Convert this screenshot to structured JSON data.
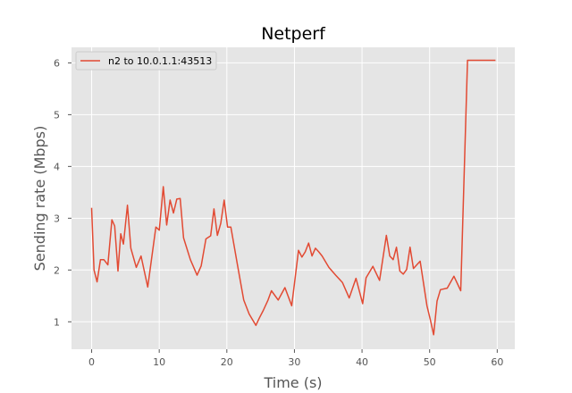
{
  "chart_data": {
    "type": "line",
    "title": "Netperf",
    "xlabel": "Time (s)",
    "ylabel": "Sending rate (Mbps)",
    "xlim": [
      -2.98,
      62.6
    ],
    "ylim": [
      0.47,
      6.3
    ],
    "xticks": [
      0,
      10,
      20,
      30,
      40,
      50,
      60
    ],
    "yticks": [
      1,
      2,
      3,
      4,
      5,
      6
    ],
    "grid": true,
    "legend_position": "upper-left",
    "colors": {
      "plot_background": "#e5e5e5",
      "grid": "#ffffff",
      "line": "#e24a33"
    },
    "series": [
      {
        "name": "n2 to 10.0.1.1:43513",
        "x": [
          0.0,
          0.35,
          0.8,
          1.3,
          1.8,
          2.4,
          3.0,
          3.4,
          3.9,
          4.3,
          4.7,
          5.3,
          5.8,
          6.6,
          7.3,
          8.3,
          9.5,
          10.0,
          10.6,
          11.1,
          11.6,
          12.1,
          12.6,
          13.1,
          13.6,
          14.6,
          15.6,
          16.2,
          16.9,
          17.6,
          18.1,
          18.6,
          19.1,
          19.6,
          20.1,
          20.6,
          21.6,
          22.5,
          23.3,
          24.3,
          24.8,
          25.4,
          26.1,
          26.6,
          27.6,
          28.6,
          29.6,
          30.6,
          31.1,
          31.6,
          32.1,
          32.6,
          33.1,
          33.6,
          34.1,
          35.1,
          36.1,
          37.1,
          38.1,
          39.1,
          40.1,
          40.6,
          41.6,
          42.6,
          43.6,
          44.1,
          44.6,
          45.1,
          45.6,
          46.1,
          46.6,
          47.1,
          47.6,
          48.6,
          49.6,
          50.1,
          50.6,
          51.1,
          51.6,
          52.6,
          53.6,
          54.6,
          55.6,
          56.6,
          57.6,
          58.6,
          59.6,
          59.75
        ],
        "y": [
          3.2,
          2.0,
          1.77,
          2.2,
          2.2,
          2.1,
          2.97,
          2.85,
          1.98,
          2.7,
          2.5,
          3.25,
          2.42,
          2.05,
          2.27,
          1.67,
          2.83,
          2.77,
          3.61,
          2.87,
          3.35,
          3.1,
          3.37,
          3.38,
          2.62,
          2.2,
          1.9,
          2.08,
          2.6,
          2.66,
          3.18,
          2.67,
          2.9,
          3.35,
          2.83,
          2.83,
          2.08,
          1.42,
          1.15,
          0.93,
          1.07,
          1.22,
          1.42,
          1.6,
          1.42,
          1.66,
          1.31,
          2.38,
          2.25,
          2.35,
          2.52,
          2.27,
          2.42,
          2.35,
          2.27,
          2.05,
          1.9,
          1.76,
          1.46,
          1.84,
          1.35,
          1.85,
          2.07,
          1.8,
          2.67,
          2.27,
          2.2,
          2.44,
          1.98,
          1.92,
          2.01,
          2.44,
          2.03,
          2.17,
          1.31,
          1.04,
          0.75,
          1.4,
          1.62,
          1.65,
          1.88,
          1.6,
          6.05,
          6.05,
          6.05,
          6.05,
          6.05,
          6.05
        ],
        "x_clean": [],
        "y_clean": []
      }
    ]
  }
}
